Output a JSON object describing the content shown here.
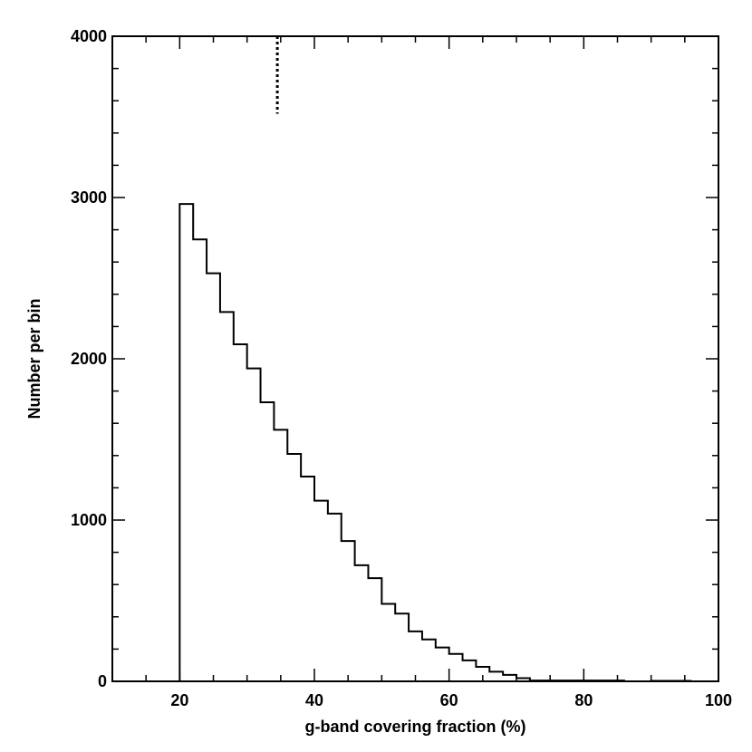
{
  "chart_data": {
    "type": "histogram",
    "title": "",
    "xlabel": "g-band covering fraction (%)",
    "ylabel": "Number per bin",
    "xlim": [
      10,
      100
    ],
    "ylim": [
      0,
      4000
    ],
    "x_ticks": [
      20,
      40,
      60,
      80,
      100
    ],
    "y_ticks": [
      0,
      1000,
      2000,
      3000,
      4000
    ],
    "x_minor_step": 5,
    "y_minor_step": 200,
    "bin_width": 2,
    "bin_edges": [
      20,
      22,
      24,
      26,
      28,
      30,
      32,
      34,
      36,
      38,
      40,
      42,
      44,
      46,
      48,
      50,
      52,
      54,
      56,
      58,
      60,
      62,
      64,
      66,
      68,
      70,
      72,
      74,
      76,
      78,
      80,
      82,
      84,
      86,
      88,
      90,
      92,
      94,
      96
    ],
    "values": [
      2960,
      2740,
      2530,
      2290,
      2090,
      1940,
      1730,
      1560,
      1410,
      1270,
      1120,
      1040,
      870,
      720,
      640,
      480,
      420,
      310,
      260,
      210,
      170,
      130,
      90,
      60,
      40,
      20,
      5,
      5,
      5,
      5,
      5,
      5,
      5,
      0,
      0,
      3,
      3,
      3
    ],
    "marker": {
      "x": 34.5,
      "y_from": 3520,
      "y_to": 4000,
      "style": "dotted"
    },
    "grid": false,
    "legend": "none"
  }
}
